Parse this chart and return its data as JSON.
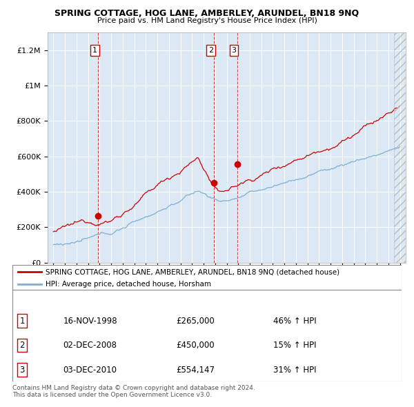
{
  "title": "SPRING COTTAGE, HOG LANE, AMBERLEY, ARUNDEL, BN18 9NQ",
  "subtitle": "Price paid vs. HM Land Registry's House Price Index (HPI)",
  "red_label": "SPRING COTTAGE, HOG LANE, AMBERLEY, ARUNDEL, BN18 9NQ (detached house)",
  "blue_label": "HPI: Average price, detached house, Horsham",
  "sale_points": [
    {
      "num": 1,
      "date_x": 1998.88,
      "price": 265000,
      "date_str": "16-NOV-1998",
      "price_str": "£265,000",
      "pct": "46% ↑ HPI"
    },
    {
      "num": 2,
      "date_x": 2008.92,
      "price": 450000,
      "date_str": "02-DEC-2008",
      "price_str": "£450,000",
      "pct": "15% ↑ HPI"
    },
    {
      "num": 3,
      "date_x": 2010.92,
      "price": 554147,
      "date_str": "03-DEC-2010",
      "price_str": "£554,147",
      "pct": "31% ↑ HPI"
    }
  ],
  "footer": "Contains HM Land Registry data © Crown copyright and database right 2024.\nThis data is licensed under the Open Government Licence v3.0.",
  "ylim": [
    0,
    1300000
  ],
  "xlim": [
    1994.5,
    2025.5
  ],
  "red_color": "#cc0000",
  "blue_color": "#7bafd4",
  "dashed_red": "#cc0000",
  "background": "#ffffff",
  "plot_bg": "#dce9f5",
  "grid_color": "#ffffff"
}
